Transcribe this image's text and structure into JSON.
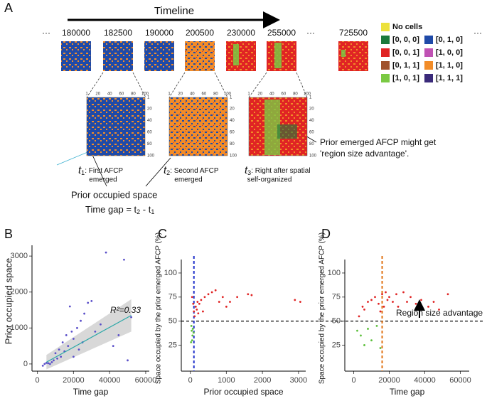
{
  "panel_a": {
    "label": "A",
    "timeline": "Timeline",
    "ellipsis": "···",
    "timepoints": [
      180000,
      182500,
      190000,
      200500,
      230000,
      255000,
      725500
    ],
    "legend": [
      {
        "label": "No cells",
        "color": "#ece13c"
      },
      {
        "label": "[0, 0, 0]",
        "color": "#1b7a3c"
      },
      {
        "label": "[0, 1, 0]",
        "color": "#1f4aa8"
      },
      {
        "label": "[0, 0, 1]",
        "color": "#e02424"
      },
      {
        "label": "[1, 0, 0]",
        "color": "#c052b4"
      },
      {
        "label": "[0, 1, 1]",
        "color": "#a0522d"
      },
      {
        "label": "[1, 1, 0]",
        "color": "#f28c28"
      },
      {
        "label": "[1, 0, 1]",
        "color": "#7ac943"
      },
      {
        "label": "[1, 1, 1]",
        "color": "#3a2a7a"
      }
    ],
    "zoom_ticks": [
      1,
      20,
      40,
      60,
      80,
      100
    ],
    "captions": [
      {
        "var": "t",
        "sub": "1",
        "lines": [
          ": First AFCP",
          "emerged"
        ]
      },
      {
        "var": "t",
        "sub": "2",
        "lines": [
          ": Second AFCP",
          "emerged"
        ]
      },
      {
        "var": "t",
        "sub": "3",
        "lines": [
          ": Right after spatial",
          "self-organized"
        ]
      }
    ],
    "prior_space": "Prior occupied space",
    "time_gap": [
      "Time gap = t",
      "2",
      " - t",
      "1"
    ],
    "advantage": [
      "Prior emerged AFCP might get",
      "'region size advantage'."
    ]
  },
  "chart_data": [
    {
      "type": "scatter",
      "panel_label": "B",
      "xlabel": "Time gap",
      "ylabel": "Prior occupied  space",
      "xlim": [
        -3000,
        62000
      ],
      "ylim": [
        -200,
        3300
      ],
      "xticks": [
        0,
        20000,
        40000,
        60000
      ],
      "yticks": [
        0,
        1000,
        2000,
        3000
      ],
      "series": [
        {
          "color": "#5a4fc9",
          "x": [
            4000,
            6000,
            8000,
            9000,
            10000,
            11000,
            12000,
            13000,
            14000,
            15000,
            16000,
            17000,
            18000,
            19000,
            20000,
            22000,
            24000,
            25000,
            26000,
            28000,
            30000,
            32000,
            35000,
            38000,
            42000,
            45000,
            48000,
            50000,
            52000,
            7000,
            3000,
            5000,
            20000,
            23000
          ],
          "y": [
            0,
            20,
            50,
            100,
            300,
            150,
            400,
            200,
            600,
            350,
            800,
            500,
            1600,
            900,
            700,
            1000,
            1200,
            600,
            1400,
            1700,
            1750,
            900,
            1100,
            3100,
            500,
            800,
            2900,
            100,
            1300,
            0,
            -50,
            30,
            200,
            400
          ]
        }
      ],
      "fit": {
        "color": "#2aa7a7",
        "band_color": "#c8c8c8",
        "x": [
          5000,
          52000
        ],
        "y": [
          50,
          1350
        ],
        "lower": [
          -150,
          900
        ],
        "upper": [
          250,
          1800
        ]
      },
      "annotation": "R²=0.33"
    },
    {
      "type": "scatter",
      "panel_label": "C",
      "xlabel": "Prior occupied space",
      "ylabel": "Space occupied by the prior emerged AFCP  (%)",
      "xlim": [
        -250,
        3200
      ],
      "ylim": [
        -2,
        114
      ],
      "xticks": [
        0,
        1000,
        2000,
        3000
      ],
      "yticks": [
        25,
        50,
        75,
        100
      ],
      "series": [
        {
          "color": "#e02424",
          "x": [
            100,
            150,
            200,
            50,
            120,
            180,
            250,
            300,
            350,
            400,
            500,
            600,
            700,
            800,
            900,
            1000,
            1100,
            1300,
            1600,
            1700,
            2900,
            3050,
            220,
            80
          ],
          "y": [
            60,
            65,
            70,
            75,
            55,
            62,
            68,
            72,
            60,
            75,
            78,
            80,
            82,
            70,
            75,
            65,
            70,
            75,
            78,
            77,
            72,
            70,
            58,
            68
          ]
        },
        {
          "color": "#5bbf3a",
          "x": [
            30,
            40,
            50,
            60,
            20,
            70,
            90
          ],
          "y": [
            45,
            40,
            30,
            35,
            28,
            42,
            38
          ]
        }
      ],
      "vline": {
        "value": 100,
        "color": "#2233cc"
      },
      "hline": 50
    },
    {
      "type": "scatter",
      "panel_label": "D",
      "xlabel": "Time gap",
      "ylabel": "Space occupied by the prior emerged AFCP  (%)",
      "xlim": [
        -5000,
        65000
      ],
      "ylim": [
        -2,
        114
      ],
      "xticks": [
        0,
        20000,
        40000,
        60000
      ],
      "yticks": [
        25,
        50,
        75,
        100
      ],
      "series": [
        {
          "color": "#e02424",
          "x": [
            5000,
            8000,
            10000,
            12000,
            14000,
            15000,
            16000,
            17000,
            18000,
            19000,
            20000,
            22000,
            24000,
            25000,
            28000,
            30000,
            32000,
            35000,
            38000,
            42000,
            45000,
            48000,
            53000,
            3000,
            6000
          ],
          "y": [
            65,
            70,
            72,
            75,
            68,
            60,
            78,
            65,
            80,
            72,
            75,
            70,
            78,
            65,
            80,
            70,
            75,
            68,
            72,
            65,
            70,
            62,
            78,
            55,
            62
          ]
        },
        {
          "color": "#5bbf3a",
          "x": [
            2000,
            4000,
            6000,
            8000,
            10000,
            13000,
            15000
          ],
          "y": [
            40,
            35,
            25,
            42,
            30,
            45,
            22
          ]
        }
      ],
      "vline": {
        "value": 16000,
        "color": "#e07010"
      },
      "annotation": "Region size advantage"
    }
  ]
}
